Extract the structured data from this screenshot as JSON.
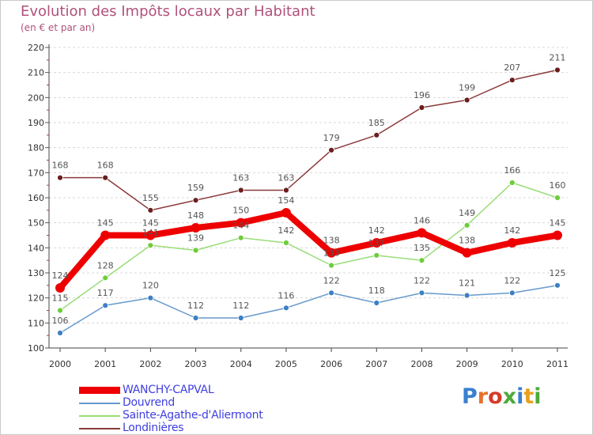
{
  "header": {
    "title": "Evolution des Impôts locaux par Habitant",
    "subtitle": "(en € et par an)"
  },
  "logo": {
    "letters": [
      "P",
      "r",
      "o",
      "x",
      "i",
      "t",
      "i"
    ],
    "colors": [
      "#3a7fd0",
      "#e8702a",
      "#d63a2a",
      "#4caa3a",
      "#3a7fd0",
      "#e8a020",
      "#4caa3a"
    ]
  },
  "chart_data": {
    "type": "line",
    "title": "Evolution des Impôts locaux par Habitant",
    "subtitle": "(en € et par an)",
    "xlabel": "",
    "ylabel": "",
    "x": [
      2000,
      2001,
      2002,
      2003,
      2004,
      2005,
      2006,
      2007,
      2008,
      2009,
      2010,
      2011
    ],
    "ylim": [
      100,
      220
    ],
    "yticks": [
      100,
      110,
      120,
      130,
      140,
      150,
      160,
      170,
      180,
      190,
      200,
      210,
      220
    ],
    "grid": "horizontal dashed",
    "legend_position": "bottom-left",
    "series": [
      {
        "name": "WANCHY-CAPVAL",
        "color": "#ee0000",
        "emphasis": true,
        "values": [
          124,
          145,
          145,
          148,
          150,
          154,
          138,
          142,
          146,
          138,
          142,
          145
        ]
      },
      {
        "name": "Douvrend",
        "color": "#6699cc",
        "emphasis": false,
        "values": [
          106,
          117,
          120,
          112,
          112,
          116,
          122,
          118,
          122,
          121,
          122,
          125
        ]
      },
      {
        "name": "Sainte-Agathe-d'Aliermont",
        "color": "#99dd77",
        "emphasis": false,
        "values": [
          115,
          128,
          141,
          139,
          144,
          142,
          133,
          137,
          135,
          149,
          166,
          160
        ]
      },
      {
        "name": "Londinières",
        "color": "#8b3a3a",
        "emphasis": false,
        "values": [
          168,
          168,
          155,
          159,
          163,
          163,
          179,
          185,
          196,
          199,
          207,
          211
        ]
      }
    ]
  }
}
